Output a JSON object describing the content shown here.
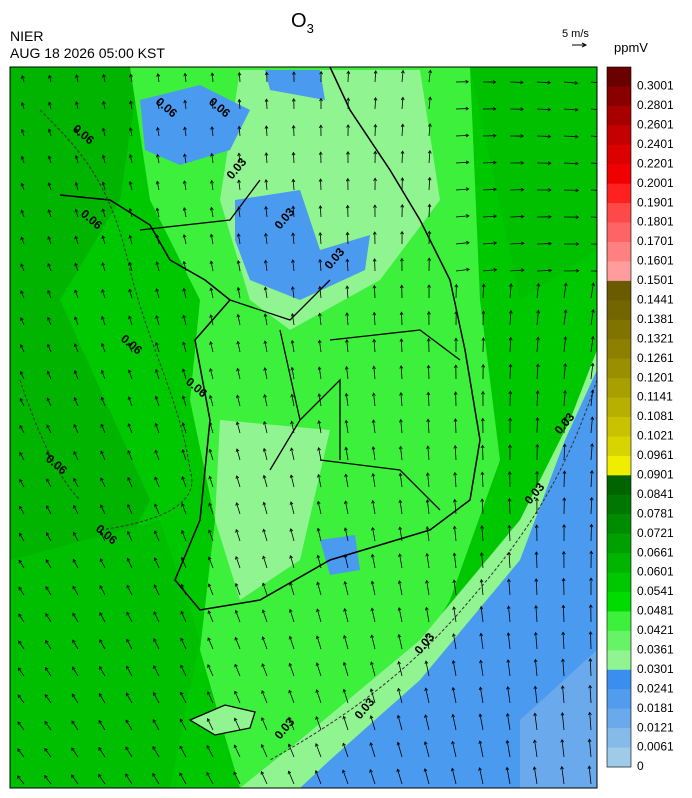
{
  "header": {
    "title": {
      "text": "O",
      "subscript": "3"
    },
    "agency": "NIER",
    "datetime": "AUG 18 2026 05:00 KST",
    "wind_scale": "5 m/s",
    "unit": "ppmV"
  },
  "colorbar": [
    {
      "label": "0.3001",
      "color": "#6b0000"
    },
    {
      "label": "0.2801",
      "color": "#8a0000"
    },
    {
      "label": "0.2601",
      "color": "#a80000"
    },
    {
      "label": "0.2401",
      "color": "#c40000"
    },
    {
      "label": "0.2201",
      "color": "#dc0000"
    },
    {
      "label": "0.2001",
      "color": "#f00000"
    },
    {
      "label": "0.1901",
      "color": "#ff2020"
    },
    {
      "label": "0.1801",
      "color": "#ff4848"
    },
    {
      "label": "0.1701",
      "color": "#ff6464"
    },
    {
      "label": "0.1601",
      "color": "#ff8080"
    },
    {
      "label": "0.1501",
      "color": "#ff9c9c"
    },
    {
      "label": "0.1441",
      "color": "#6a5a00"
    },
    {
      "label": "0.1381",
      "color": "#736600"
    },
    {
      "label": "0.1321",
      "color": "#807300"
    },
    {
      "label": "0.1261",
      "color": "#8d8000"
    },
    {
      "label": "0.1201",
      "color": "#9a8f00"
    },
    {
      "label": "0.1141",
      "color": "#a89f00"
    },
    {
      "label": "0.1081",
      "color": "#b8b000"
    },
    {
      "label": "0.1021",
      "color": "#c8c200"
    },
    {
      "label": "0.0961",
      "color": "#d8d400"
    },
    {
      "label": "0.0901",
      "color": "#f0ee00"
    },
    {
      "label": "0.0841",
      "color": "#006400"
    },
    {
      "label": "0.0781",
      "color": "#007800"
    },
    {
      "label": "0.0721",
      "color": "#008c00"
    },
    {
      "label": "0.0661",
      "color": "#00a000"
    },
    {
      "label": "0.0601",
      "color": "#00b400"
    },
    {
      "label": "0.0541",
      "color": "#00c800"
    },
    {
      "label": "0.0481",
      "color": "#00dc00"
    },
    {
      "label": "0.0421",
      "color": "#3cf03c"
    },
    {
      "label": "0.0361",
      "color": "#66f466"
    },
    {
      "label": "0.0301",
      "color": "#90f490"
    },
    {
      "label": "0.0241",
      "color": "#3a8ef0"
    },
    {
      "label": "0.0181",
      "color": "#529cee"
    },
    {
      "label": "0.0121",
      "color": "#6aaaec"
    },
    {
      "label": "0.0061",
      "color": "#84bbe9"
    },
    {
      "label": "0",
      "color": "#a0cbe8"
    }
  ],
  "contour_labels": [
    "0.06",
    "0.06",
    "0.06",
    "0.06",
    "0.06",
    "0.06",
    "0.06",
    "0.06",
    "0.03",
    "0.03",
    "0.03",
    "0.03",
    "0.03",
    "0.03",
    "0.03",
    "0.03"
  ]
}
